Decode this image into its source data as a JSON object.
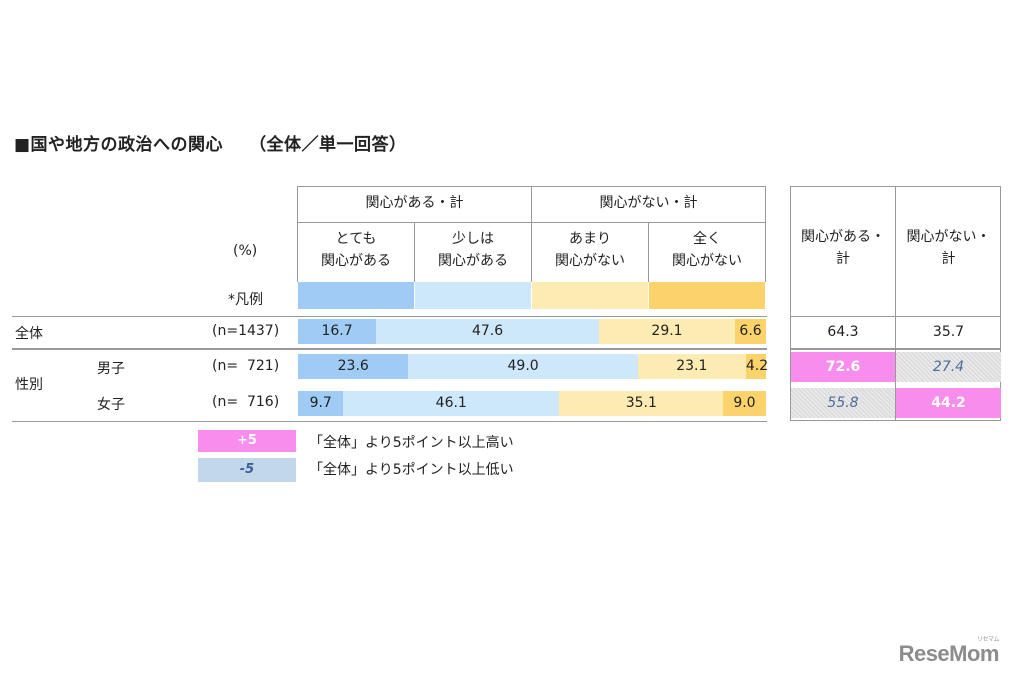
{
  "title": "■国や地方の政治への関心",
  "subtitle": "（全体／単一回答）",
  "pct_label": "(%)",
  "legend_label": "*凡例",
  "group_headers": [
    "関心がある・計",
    "関心がない・計"
  ],
  "category_lines": [
    [
      "とても",
      "関心がある"
    ],
    [
      "少しは",
      "関心がある"
    ],
    [
      "あまり",
      "関心がない"
    ],
    [
      "全く",
      "関心がない"
    ]
  ],
  "summary_headers": [
    [
      "関心がある・",
      "計"
    ],
    [
      "関心がない・",
      "計"
    ]
  ],
  "section_label": "性別",
  "rows": [
    {
      "name": "全体",
      "n": "(n=1437)",
      "values": [
        "16.7",
        "47.6",
        "29.1",
        "6.6"
      ],
      "sums": [
        "64.3",
        "35.7"
      ],
      "marks": [
        "",
        ""
      ]
    },
    {
      "name": "男子",
      "n": "(n=  721)",
      "values": [
        "23.6",
        "49.0",
        "23.1",
        "4.2"
      ],
      "sums": [
        "72.6",
        "27.4"
      ],
      "marks": [
        "hi",
        "lo"
      ]
    },
    {
      "name": "女子",
      "n": "(n=  716)",
      "values": [
        "9.7",
        "46.1",
        "35.1",
        "9.0"
      ],
      "sums": [
        "55.8",
        "44.2"
      ],
      "marks": [
        "lo",
        "hi"
      ]
    }
  ],
  "key": [
    {
      "sample": "+5",
      "text": "「全体」より5ポイント以上高い",
      "bg": "#f98ded",
      "fg": "#ffffff"
    },
    {
      "sample": "-5",
      "text": "「全体」より5ポイント以上低い",
      "bg": "#c2d8ea",
      "fg": "#3a5f95"
    }
  ],
  "colors": [
    "#9fcbf5",
    "#cde8fa",
    "#fcebb2",
    "#fcd36b"
  ],
  "logo": "ReseMom",
  "logo_small": "リセマム",
  "chart_data": {
    "type": "bar",
    "stacked": true,
    "orientation": "horizontal",
    "title": "■国や地方の政治への関心",
    "subtitle": "（全体／単一回答）",
    "unit": "(%)",
    "categories": [
      "全体",
      "男子",
      "女子"
    ],
    "series": [
      {
        "name": "とても関心がある",
        "values": [
          16.7,
          23.6,
          9.7
        ]
      },
      {
        "name": "少しは関心がある",
        "values": [
          47.6,
          49.0,
          46.1
        ]
      },
      {
        "name": "あまり関心がない",
        "values": [
          29.1,
          23.1,
          35.1
        ]
      },
      {
        "name": "全く関心がない",
        "values": [
          6.6,
          4.2,
          9.0
        ]
      }
    ],
    "totals": [
      {
        "name": "関心がある・計",
        "values": [
          64.3,
          72.6,
          55.8
        ]
      },
      {
        "name": "関心がない・計",
        "values": [
          35.7,
          27.4,
          44.2
        ]
      }
    ]
  }
}
